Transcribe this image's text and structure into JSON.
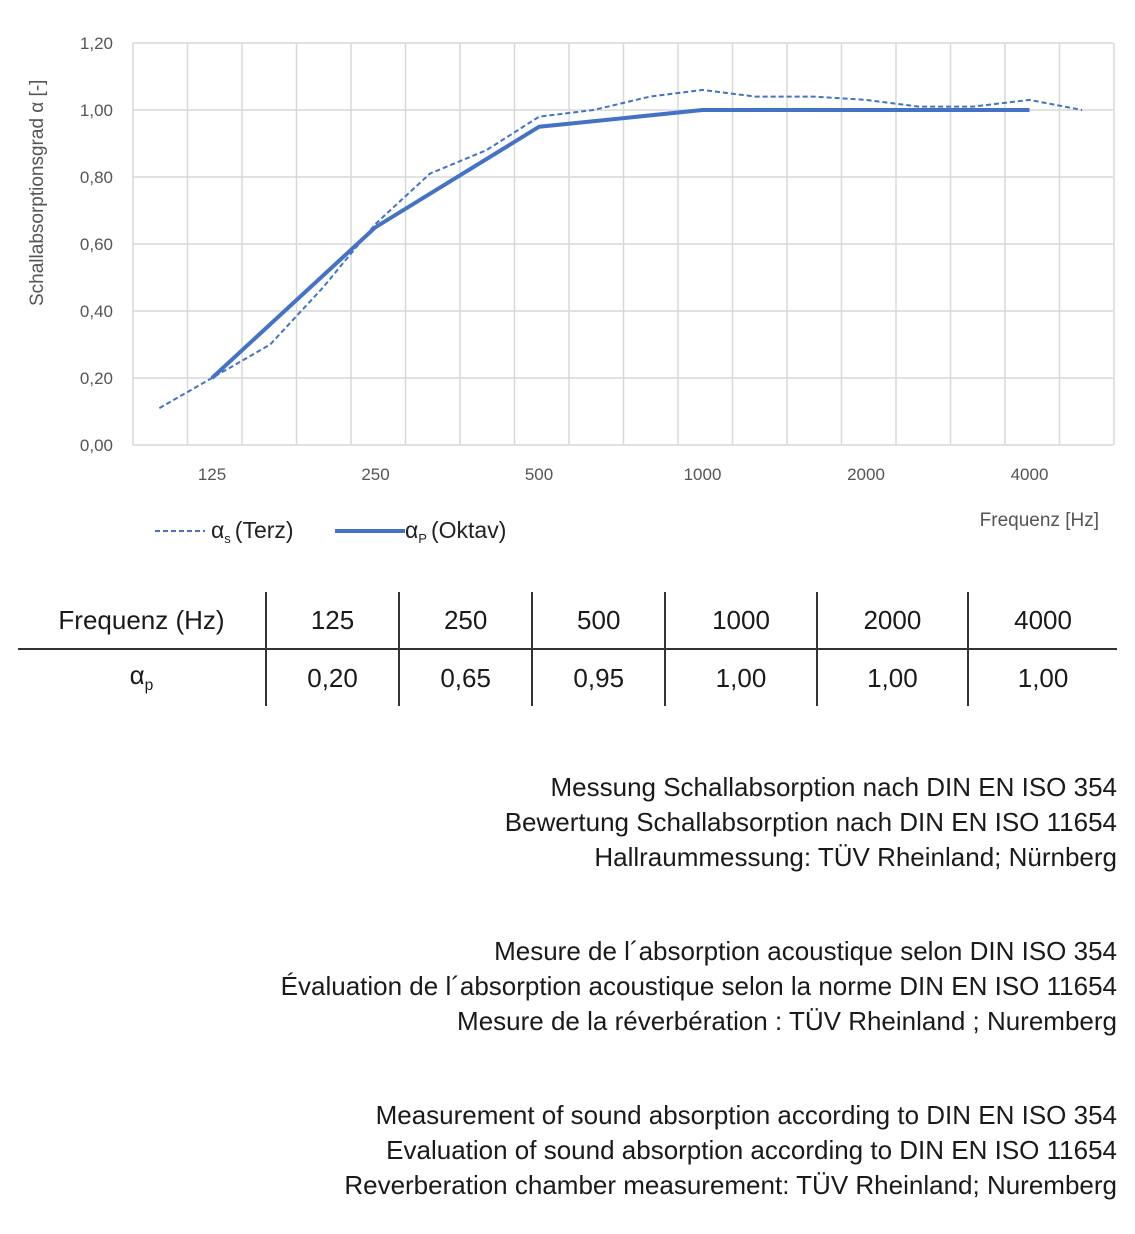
{
  "chart_data": {
    "type": "line",
    "ylabel": "Schallabsorptionsgrad α [-]",
    "xlabel": "Frequenz [Hz]",
    "xscale": "log",
    "ylim": [
      0,
      1.2
    ],
    "yticks": [
      "0,00",
      "0,20",
      "0,40",
      "0,60",
      "0,80",
      "1,00",
      "1,20"
    ],
    "xticks": [
      "125",
      "250",
      "500",
      "1000",
      "2000",
      "4000"
    ],
    "grid": true,
    "legend_position": "bottom-left",
    "series": [
      {
        "name": "αs (Terz)",
        "symbol": "α",
        "sub": "s",
        "suffix": "(Terz)",
        "style": "dashed",
        "color": "#4472C4",
        "x": [
          100,
          125,
          160,
          200,
          250,
          315,
          400,
          500,
          630,
          800,
          1000,
          1250,
          1600,
          2000,
          2500,
          3150,
          4000,
          5000
        ],
        "y": [
          0.11,
          0.2,
          0.3,
          0.47,
          0.66,
          0.81,
          0.88,
          0.98,
          1.0,
          1.04,
          1.06,
          1.04,
          1.04,
          1.03,
          1.01,
          1.01,
          1.03,
          1.0
        ]
      },
      {
        "name": "αP (Oktav)",
        "symbol": "α",
        "sub": "P",
        "suffix": "(Oktav)",
        "style": "solid",
        "color": "#4472C4",
        "x": [
          125,
          250,
          500,
          1000,
          2000,
          4000
        ],
        "y": [
          0.2,
          0.65,
          0.95,
          1.0,
          1.0,
          1.0
        ]
      }
    ]
  },
  "table": {
    "header_label": "Frequenz (Hz)",
    "frequencies": [
      "125",
      "250",
      "500",
      "1000",
      "2000",
      "4000"
    ],
    "row_symbol": "α",
    "row_sub": "p",
    "values": [
      "0,20",
      "0,65",
      "0,95",
      "1,00",
      "1,00",
      "1,00"
    ]
  },
  "notes": {
    "de": [
      "Messung Schallabsorption nach DIN EN ISO 354",
      "Bewertung Schallabsorption nach DIN EN ISO 11654",
      "Hallraummessung: TÜV Rheinland; Nürnberg"
    ],
    "fr": [
      "Mesure de l´absorption acoustique selon DIN ISO 354",
      "Évaluation de l´absorption acoustique selon la norme DIN EN ISO 11654",
      "Mesure de la réverbération : TÜV Rheinland ; Nuremberg"
    ],
    "en": [
      "Measurement of sound absorption according to DIN EN ISO 354",
      "Evaluation of sound absorption according to DIN EN ISO 11654",
      "Reverberation chamber measurement: TÜV Rheinland; Nuremberg"
    ]
  }
}
